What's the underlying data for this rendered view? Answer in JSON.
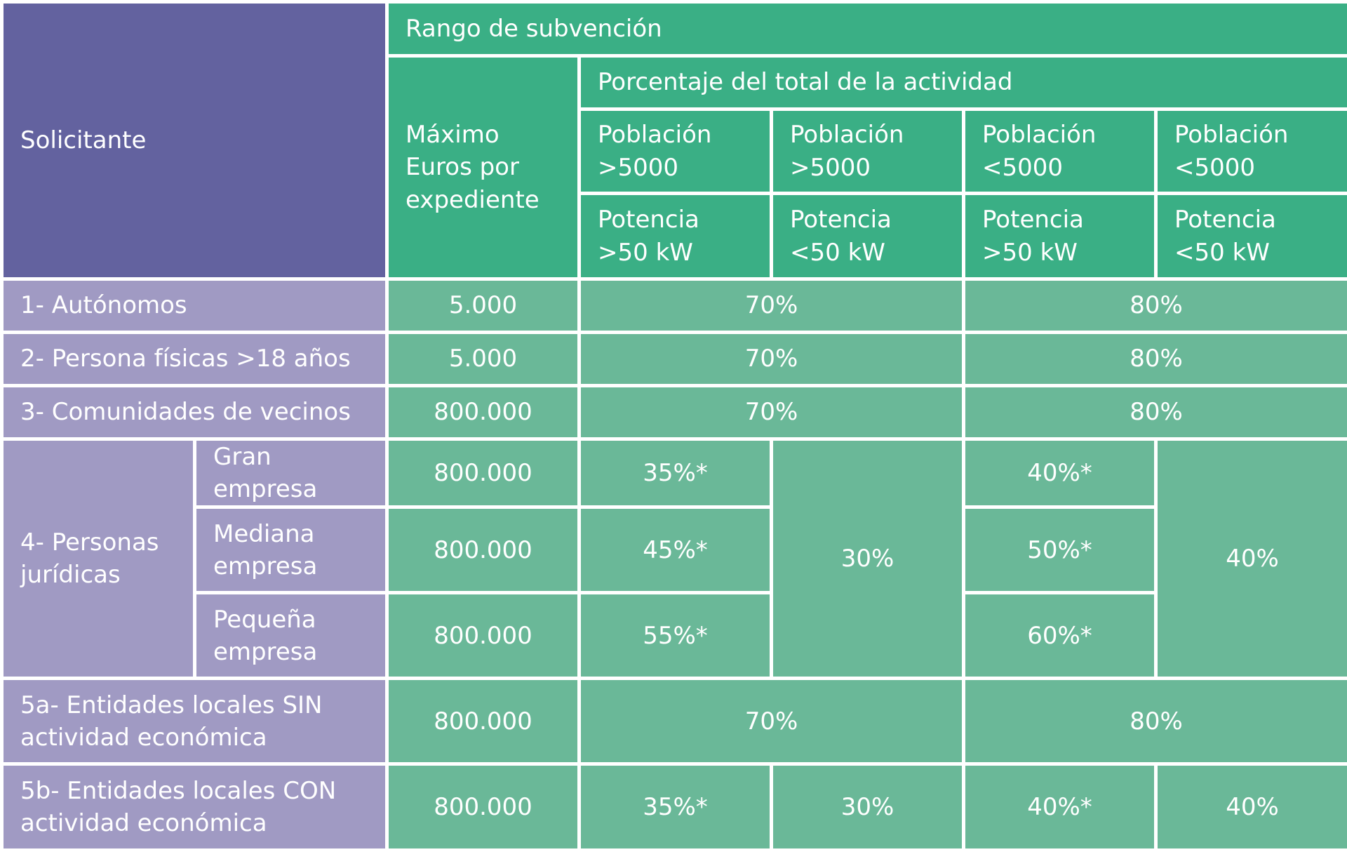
{
  "header": {
    "applicant": "Solicitante",
    "range": "Rango de subvención",
    "max_euros": "Máximo Euros por expediente",
    "percentage": "Porcentaje del total de la actividad",
    "population": [
      "Población >5000",
      "Población >5000",
      "Población <5000",
      "Población <5000"
    ],
    "power": [
      "Potencia >50 kW",
      "Potencia <50 kW",
      "Potencia >50 kW",
      "Potencia <50 kW"
    ]
  },
  "rows": {
    "autonomos": {
      "label": "1- Autónomos",
      "max": "5.000",
      "high_pop": "70%",
      "low_pop": "80%"
    },
    "personas_fisicas": {
      "label": "2- Persona físicas >18 años",
      "max": "5.000",
      "high_pop": "70%",
      "low_pop": "80%"
    },
    "comunidades": {
      "label": "3- Comunidades de vecinos",
      "max": "800.000",
      "high_pop": "70%",
      "low_pop": "80%"
    },
    "juridicas": {
      "label": "4- Personas jurídicas",
      "high_small_power": "30%",
      "low_small_power": "40%",
      "sub": [
        {
          "label": "Gran empresa",
          "max": "800.000",
          "high_big_power": "35%*",
          "low_big_power": "40%*"
        },
        {
          "label": "Mediana empresa",
          "max": "800.000",
          "high_big_power": "45%*",
          "low_big_power": "50%*"
        },
        {
          "label": "Pequeña empresa",
          "max": "800.000",
          "high_big_power": "55%*",
          "low_big_power": "60%*"
        }
      ]
    },
    "locales_sin": {
      "label": "5a- Entidades locales SIN actividad económica",
      "max": "800.000",
      "high_pop": "70%",
      "low_pop": "80%"
    },
    "locales_con": {
      "label": "5b- Entidades locales CON actividad económica",
      "max": "800.000",
      "values": [
        "35%*",
        "30%",
        "40%*",
        "40%"
      ]
    }
  },
  "colors": {
    "header_dark": "#63629f",
    "header_green": "#3aaf85",
    "label_purple": "#a09ac3",
    "value_green": "#6ab898"
  }
}
